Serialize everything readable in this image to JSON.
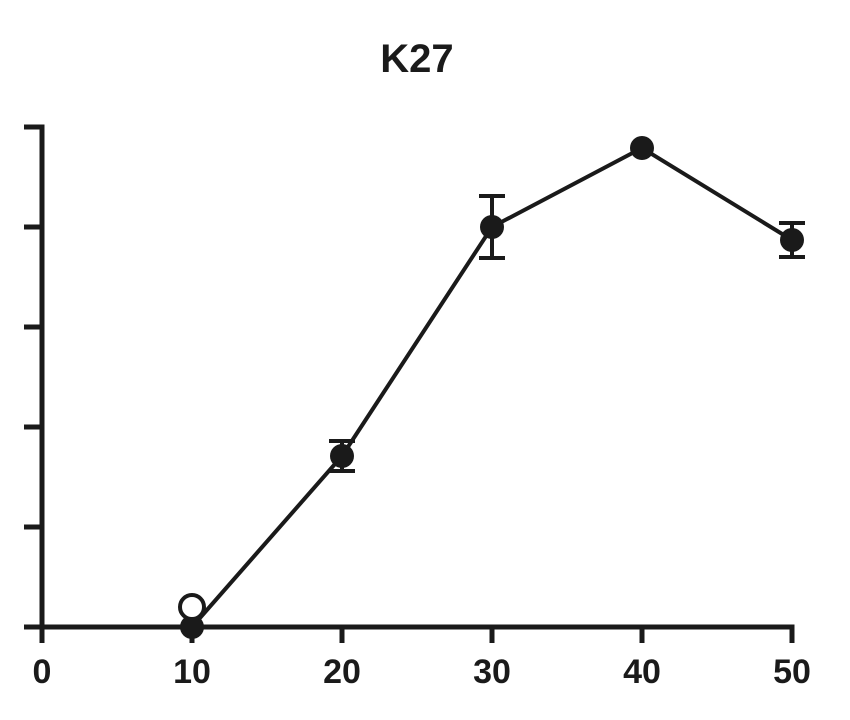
{
  "chart_data": {
    "type": "line",
    "title": "K27",
    "xlabel": "",
    "ylabel": "",
    "xlim": [
      0,
      50
    ],
    "ylim": [
      0,
      5
    ],
    "x_ticks": [
      0,
      10,
      20,
      30,
      40,
      50
    ],
    "x_tick_labels": [
      "0",
      "10",
      "20",
      "30",
      "40",
      "50"
    ],
    "y_ticks": [
      0,
      1,
      2,
      3,
      4,
      5
    ],
    "y_tick_labels": [
      "",
      "",
      "",
      "",
      "",
      ""
    ],
    "grid": false,
    "colors": {
      "ink": "#1a1a1a",
      "background": "#ffffff"
    },
    "series": [
      {
        "x": [
          10,
          20,
          30,
          40,
          50
        ],
        "values": [
          0.0,
          1.71,
          4.0,
          4.79,
          3.87
        ],
        "error": [
          0,
          0.15,
          0.31,
          0,
          0.17
        ],
        "marker": "filled-circle"
      },
      {
        "x": [
          10
        ],
        "values": [
          0.2
        ],
        "error": [
          0
        ],
        "marker": "open-circle"
      }
    ]
  }
}
